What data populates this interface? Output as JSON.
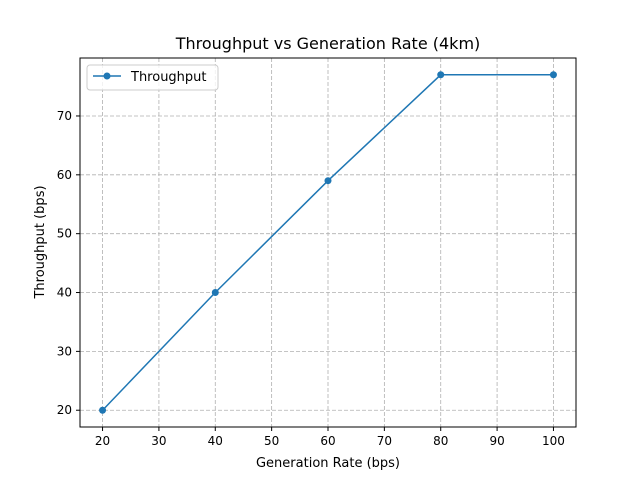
{
  "chart_data": {
    "type": "line",
    "title": "Throughput vs Generation Rate (4km)",
    "xlabel": "Generation Rate (bps)",
    "ylabel": "Throughput (bps)",
    "xlim": [
      16,
      104
    ],
    "ylim": [
      17.15,
      79.85
    ],
    "xticks": [
      20,
      30,
      40,
      50,
      60,
      70,
      80,
      90,
      100
    ],
    "yticks": [
      20,
      30,
      40,
      50,
      60,
      70
    ],
    "grid": true,
    "legend_position": "top-left",
    "series": [
      {
        "name": "Throughput",
        "color": "#1f77b4",
        "marker": "circle",
        "x": [
          20,
          40,
          60,
          80,
          100
        ],
        "y": [
          20,
          40,
          59,
          77,
          77
        ]
      }
    ]
  }
}
